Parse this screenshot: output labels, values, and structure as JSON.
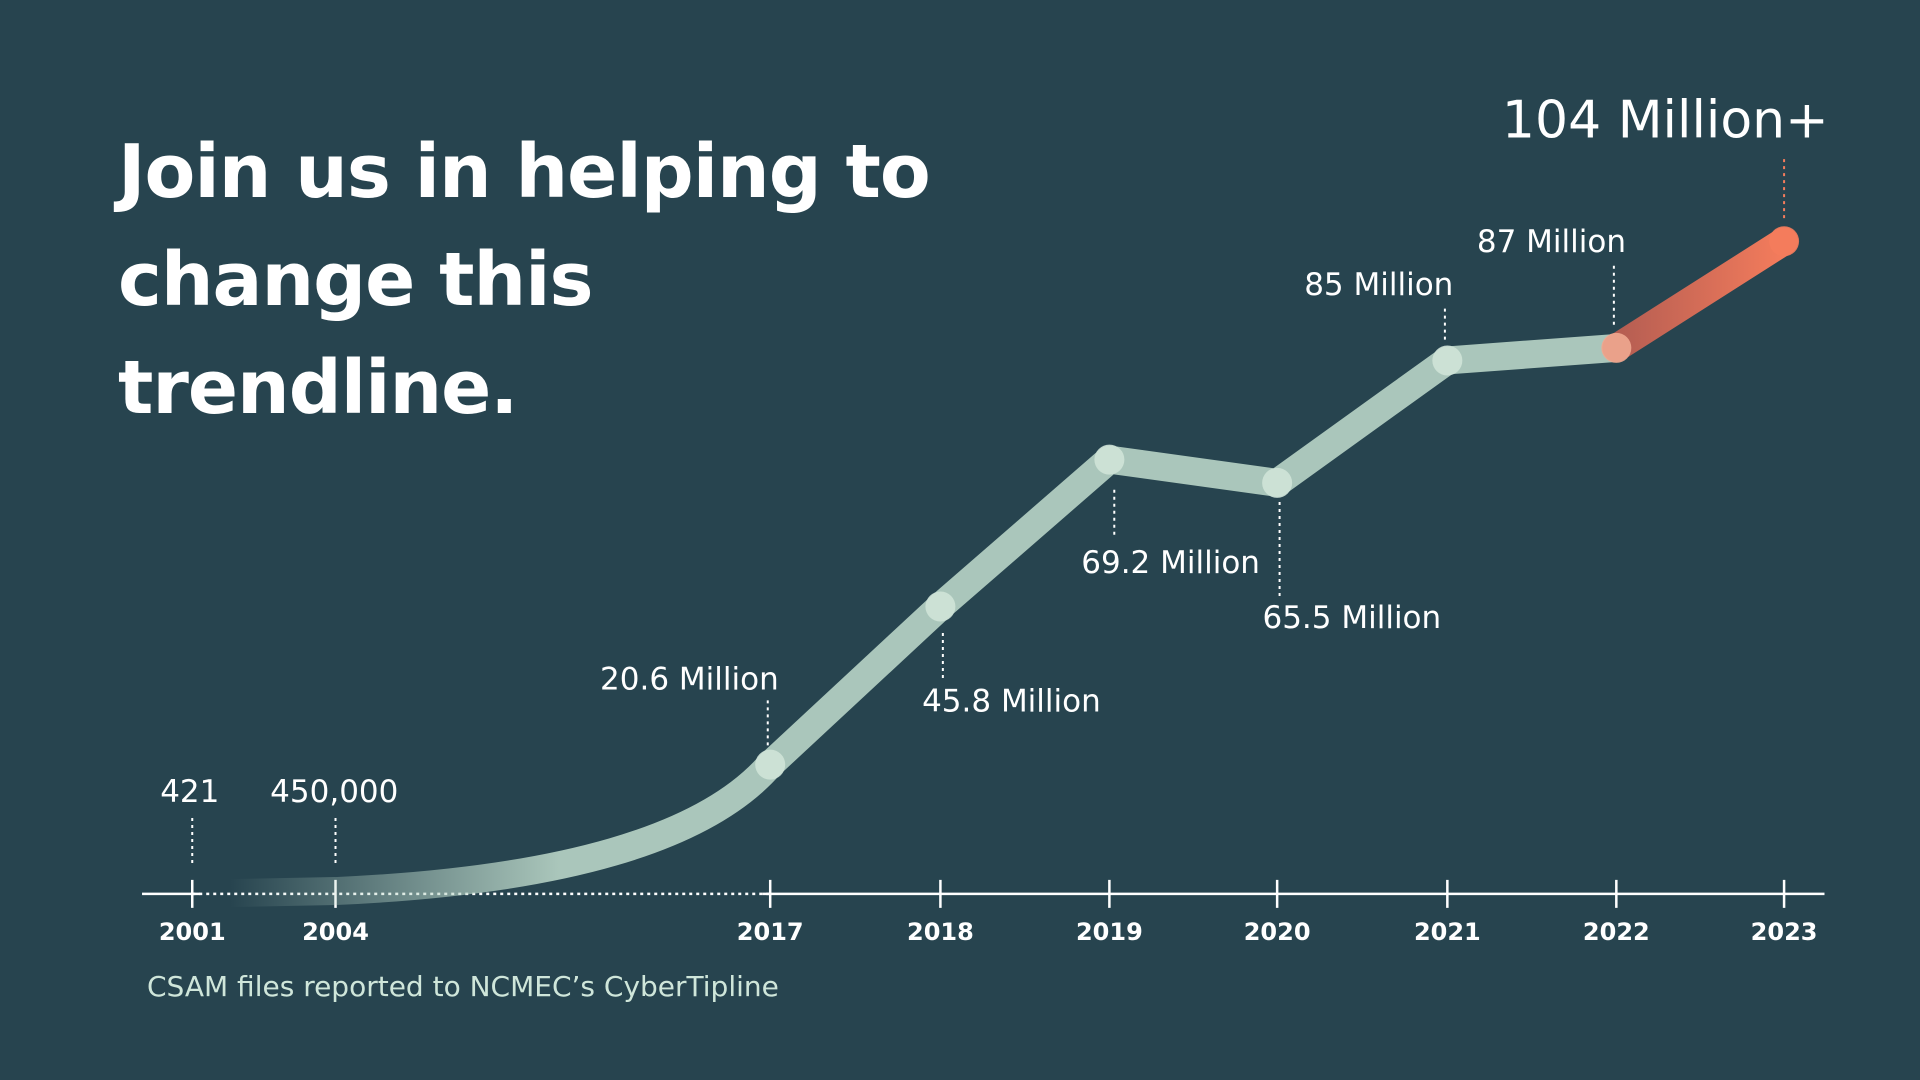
{
  "chart_data": {
    "type": "line",
    "title": "Join us in helping to change this trendline.",
    "caption": "CSAM files reported to NCMEC’s CyberTipline",
    "categories": [
      "2001",
      "2004",
      "2017",
      "2018",
      "2019",
      "2020",
      "2021",
      "2022",
      "2023"
    ],
    "series": [
      {
        "color": "#b9d5c7",
        "highlight_color": "#f47c5c",
        "values": [
          421,
          450000,
          20600000,
          45800000,
          69200000,
          65500000,
          85000000,
          87000000,
          104000000
        ],
        "value_labels": [
          "421",
          "450,000",
          "20.6 Million",
          "45.8 Million",
          "69.2 Million",
          "65.5 Million",
          "85 Million",
          "87 Million",
          "104 Million+"
        ]
      }
    ]
  }
}
